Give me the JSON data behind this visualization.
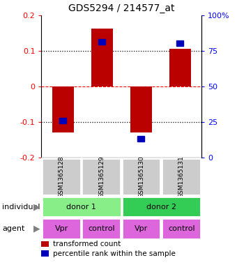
{
  "title": "GDS5294 / 214577_at",
  "samples": [
    "GSM1365128",
    "GSM1365129",
    "GSM1365130",
    "GSM1365131"
  ],
  "bar_values": [
    -0.13,
    0.163,
    -0.13,
    0.105
  ],
  "percentile_values": [
    -0.097,
    0.125,
    -0.148,
    0.121
  ],
  "bar_color": "#bb0000",
  "percentile_color": "#0000bb",
  "ylim": [
    -0.2,
    0.2
  ],
  "yticks_left": [
    -0.2,
    -0.1,
    0,
    0.1,
    0.2
  ],
  "yticks_left_labels": [
    "-0.2",
    "-0.1",
    "0",
    "0.1",
    "0.2"
  ],
  "yticks_right_labels": [
    "0",
    "25",
    "50",
    "75",
    "100%"
  ],
  "gridlines_dotted": [
    0.1,
    -0.1
  ],
  "gridline_dashed": 0.0,
  "individual_labels": [
    "donor 1",
    "donor 2"
  ],
  "individual_colors": [
    "#88ee88",
    "#33cc55"
  ],
  "agent_labels": [
    "Vpr",
    "control",
    "Vpr",
    "control"
  ],
  "agent_color": "#dd66dd",
  "sample_bg_color": "#cccccc",
  "bar_width": 0.55,
  "x_positions": [
    0,
    1,
    2,
    3
  ],
  "figsize": [
    3.4,
    3.93
  ],
  "dpi": 100
}
